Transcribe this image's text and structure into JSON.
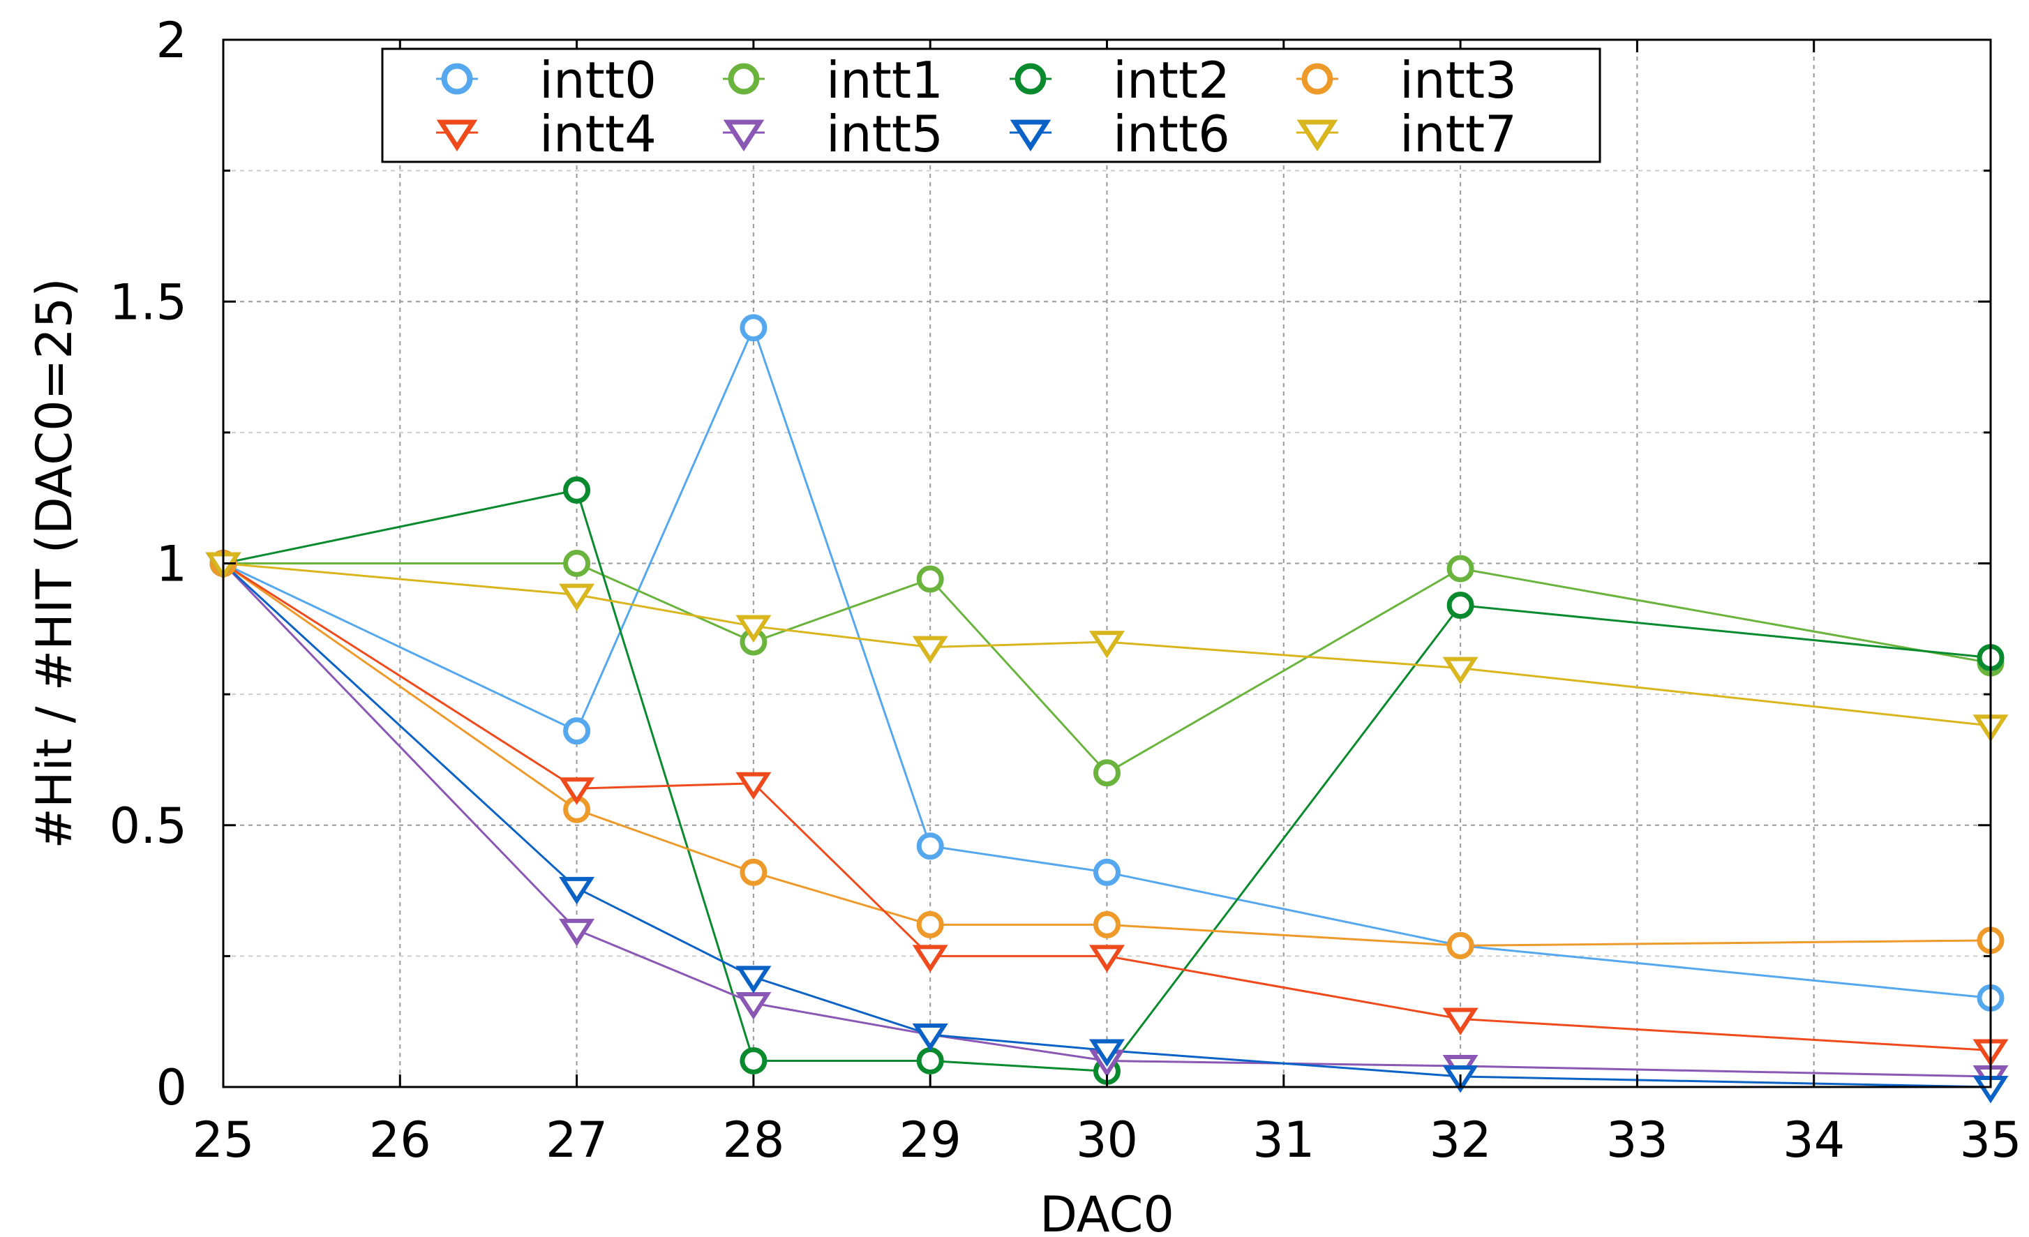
{
  "chart_data": {
    "type": "line",
    "xlabel": "DAC0",
    "ylabel": "#Hit / #HIT (DAC0=25)",
    "xlim": [
      25,
      35
    ],
    "ylim": [
      0,
      2
    ],
    "x_ticks": [
      "25",
      "26",
      "27",
      "28",
      "29",
      "30",
      "31",
      "32",
      "33",
      "34",
      "35"
    ],
    "y_ticks": [
      "0",
      "0.5",
      "1",
      "1.5",
      "2"
    ],
    "y_minor_ticks": [
      0.25,
      0.75,
      1.25,
      1.75
    ],
    "grid": true,
    "legend_position": "top",
    "series": [
      {
        "name": "intt0",
        "marker": "circle",
        "color": "#55a7ee",
        "x": [
          25,
          27,
          28,
          29,
          30,
          32,
          35
        ],
        "y": [
          1.0,
          0.68,
          1.45,
          0.46,
          0.41,
          0.27,
          0.17
        ]
      },
      {
        "name": "intt1",
        "marker": "circle",
        "color": "#6ab43e",
        "x": [
          25,
          27,
          28,
          29,
          30,
          32,
          35
        ],
        "y": [
          1.0,
          1.0,
          0.85,
          0.97,
          0.6,
          0.99,
          0.81
        ]
      },
      {
        "name": "intt2",
        "marker": "circle",
        "color": "#0a8a2e",
        "x": [
          25,
          27,
          28,
          29,
          30,
          32,
          35
        ],
        "y": [
          1.0,
          1.14,
          0.05,
          0.05,
          0.03,
          0.92,
          0.82
        ]
      },
      {
        "name": "intt3",
        "marker": "circle",
        "color": "#ee9a2a",
        "x": [
          25,
          27,
          28,
          29,
          30,
          32,
          35
        ],
        "y": [
          1.0,
          0.53,
          0.41,
          0.31,
          0.31,
          0.27,
          0.28
        ]
      },
      {
        "name": "intt4",
        "marker": "triangle-down",
        "color": "#ef4a1c",
        "x": [
          25,
          27,
          28,
          29,
          30,
          32,
          35
        ],
        "y": [
          1.0,
          0.57,
          0.58,
          0.25,
          0.25,
          0.13,
          0.07
        ]
      },
      {
        "name": "intt5",
        "marker": "triangle-down",
        "color": "#8a58b4",
        "x": [
          25,
          27,
          28,
          29,
          30,
          32,
          35
        ],
        "y": [
          1.0,
          0.3,
          0.16,
          0.1,
          0.05,
          0.04,
          0.02
        ]
      },
      {
        "name": "intt6",
        "marker": "triangle-down",
        "color": "#0a62c6",
        "x": [
          25,
          27,
          28,
          29,
          30,
          32,
          35
        ],
        "y": [
          1.0,
          0.38,
          0.21,
          0.1,
          0.07,
          0.02,
          0.0
        ]
      },
      {
        "name": "intt7",
        "marker": "triangle-down",
        "color": "#d9b51e",
        "x": [
          25,
          27,
          28,
          29,
          30,
          32,
          35
        ],
        "y": [
          1.0,
          0.94,
          0.88,
          0.84,
          0.85,
          0.8,
          0.69
        ]
      }
    ]
  }
}
